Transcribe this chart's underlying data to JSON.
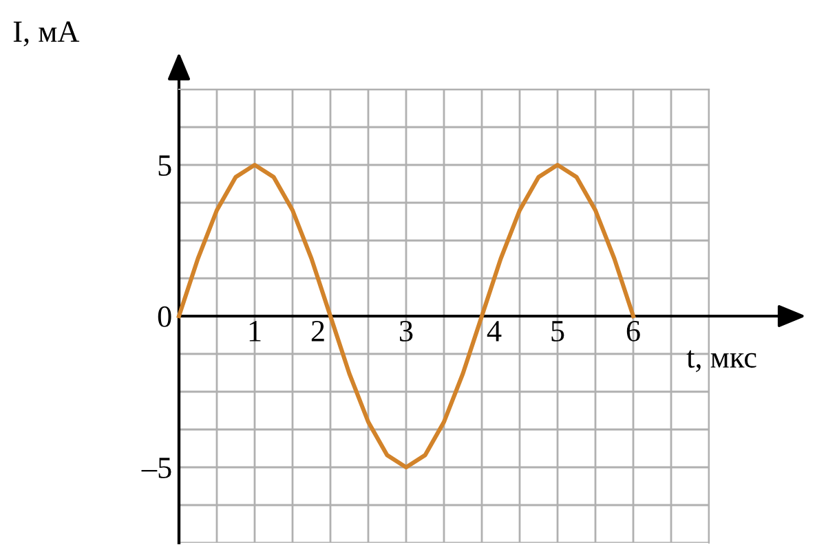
{
  "chart_data": {
    "type": "line",
    "xlabel": "t, мкс",
    "ylabel": "I, мА",
    "x": [
      0,
      0.25,
      0.5,
      0.75,
      1,
      1.25,
      1.5,
      1.75,
      2,
      2.25,
      2.5,
      2.75,
      3,
      3.25,
      3.5,
      3.75,
      4,
      4.25,
      4.5,
      4.75,
      5,
      5.25,
      5.5,
      5.75,
      6
    ],
    "series": [
      {
        "color": "#d2832a",
        "values": [
          0,
          1.9,
          3.5,
          4.6,
          5,
          4.6,
          3.5,
          1.9,
          0,
          -1.9,
          -3.5,
          -4.6,
          -5,
          -4.6,
          -3.5,
          -1.9,
          0,
          1.9,
          3.5,
          4.6,
          5,
          4.6,
          3.5,
          1.9,
          0
        ]
      }
    ],
    "xlim": [
      0,
      7
    ],
    "ylim": [
      -7.5,
      7.5
    ],
    "xticks": [
      {
        "value": 0.5,
        "label": null
      },
      1,
      {
        "value": 1.5,
        "label": null
      },
      2,
      {
        "value": 2.5,
        "label": null
      },
      3,
      {
        "value": 3.5,
        "label": null
      },
      4,
      {
        "value": 4.5,
        "label": null
      },
      5,
      {
        "value": 5.5,
        "label": null
      },
      6,
      {
        "value": 6.5,
        "label": null
      },
      {
        "value": 7,
        "label": null
      }
    ],
    "yticks": [
      {
        "value": -7.5,
        "label": null
      },
      {
        "value": -6.25,
        "label": null
      },
      {
        "value": -5,
        "label": "–5"
      },
      {
        "value": -3.75,
        "label": null
      },
      {
        "value": -2.5,
        "label": null
      },
      {
        "value": -1.25,
        "label": null
      },
      0,
      {
        "value": 1.25,
        "label": null
      },
      {
        "value": 2.5,
        "label": null
      },
      {
        "value": 3.75,
        "label": null
      },
      5,
      {
        "value": 6.25,
        "label": null
      },
      {
        "value": 7.5,
        "label": null
      }
    ],
    "grid": true,
    "marker": "none",
    "line_style": "solid"
  }
}
